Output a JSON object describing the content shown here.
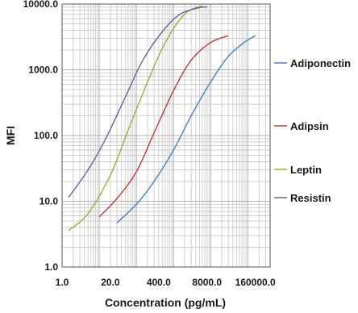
{
  "chart_data": {
    "type": "line",
    "xscale": "log",
    "yscale": "log",
    "xlabel": "Concentration (pg/mL)",
    "ylabel": "MFI",
    "xlim": [
      1,
      400000
    ],
    "ylim": [
      1,
      10000
    ],
    "x_ticks": [
      {
        "value": 1,
        "label": "1.0"
      },
      {
        "value": 20,
        "label": "20.0"
      },
      {
        "value": 400,
        "label": "400.0"
      },
      {
        "value": 8000,
        "label": "8000.0"
      },
      {
        "value": 160000,
        "label": "160000.0"
      }
    ],
    "y_ticks": [
      {
        "value": 1,
        "label": "1.0"
      },
      {
        "value": 10,
        "label": "10.0"
      },
      {
        "value": 100,
        "label": "100.0"
      },
      {
        "value": 1000,
        "label": "1000.0"
      },
      {
        "value": 10000,
        "label": "10000.0"
      }
    ],
    "grid": true,
    "legend_position": "right",
    "series": [
      {
        "name": "Adiponectin",
        "color": "#4a7ec4",
        "x": [
          30,
          100,
          300,
          1000,
          3000,
          10000,
          30000,
          80000,
          160000
        ],
        "y": [
          4.7,
          9,
          20,
          60,
          200,
          650,
          1600,
          2600,
          3300
        ]
      },
      {
        "name": "Adipsin",
        "color": "#c0393b",
        "x": [
          10,
          30,
          100,
          300,
          1000,
          3000,
          10000,
          30000
        ],
        "y": [
          5.8,
          11,
          28,
          110,
          480,
          1400,
          2600,
          3300
        ]
      },
      {
        "name": "Leptin",
        "color": "#8db33a",
        "x": [
          1.5,
          5,
          20,
          60,
          200,
          600,
          2000,
          6000
        ],
        "y": [
          3.6,
          6.5,
          25,
          120,
          650,
          2600,
          7000,
          9500
        ]
      },
      {
        "name": "Resistin",
        "color": "#7a5ba3",
        "x": [
          1.5,
          5,
          15,
          50,
          150,
          500,
          1500,
          5000,
          8000
        ],
        "y": [
          11.5,
          30,
          90,
          380,
          1400,
          3800,
          7000,
          8800,
          9000
        ]
      }
    ]
  }
}
